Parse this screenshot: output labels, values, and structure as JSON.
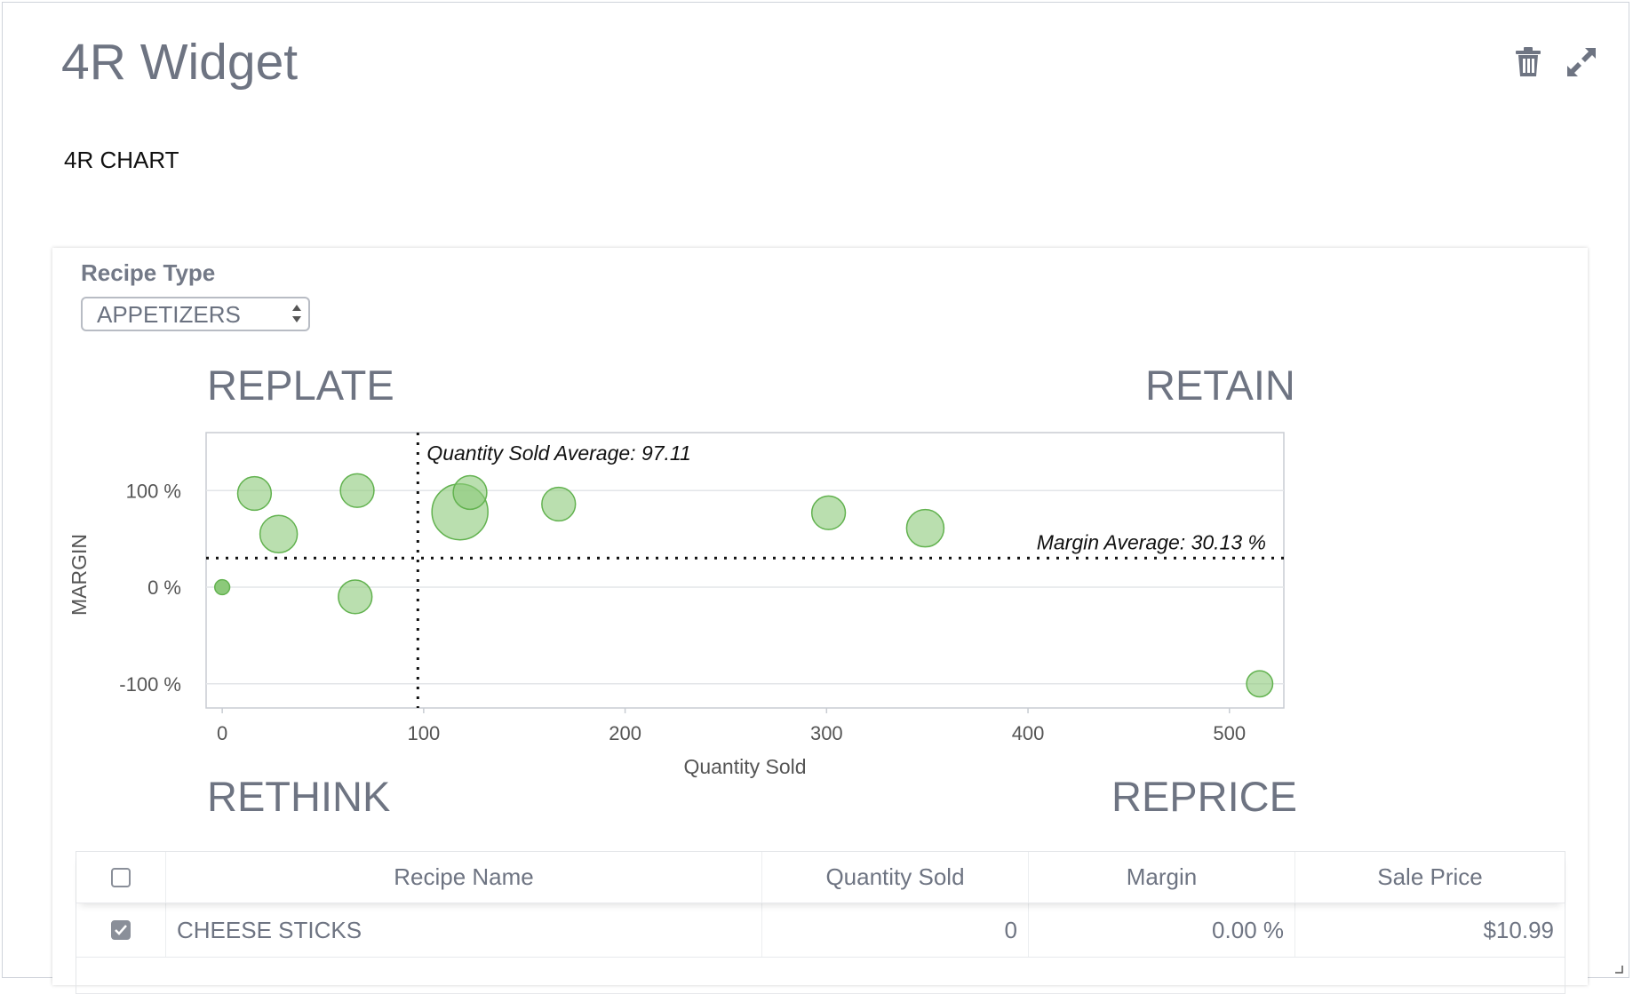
{
  "widget": {
    "title": "4R Widget",
    "section_label": "4R CHART",
    "icons": {
      "delete": "trash-icon",
      "expand": "expand-arrows-icon"
    }
  },
  "filter": {
    "label": "Recipe Type",
    "selected": "APPETIZERS"
  },
  "quadrants": {
    "top_left": "REPLATE",
    "top_right": "RETAIN",
    "bottom_left": "RETHINK",
    "bottom_right": "REPRICE"
  },
  "chart_data": {
    "type": "scatter",
    "xlabel": "Quantity Sold",
    "ylabel": "MARGIN",
    "x_ticks": [
      "0",
      "100",
      "200",
      "300",
      "400",
      "500"
    ],
    "y_ticks": [
      "100 %",
      "0 %",
      "-100 %"
    ],
    "xlim": [
      -8,
      527
    ],
    "ylim": [
      -125,
      160
    ],
    "grid": true,
    "bubble_color": "#8cc97a",
    "points": [
      {
        "x": 0,
        "y": 0,
        "r": 4
      },
      {
        "x": 16,
        "y": 97,
        "r": 9
      },
      {
        "x": 28,
        "y": 55,
        "r": 10
      },
      {
        "x": 67,
        "y": 100,
        "r": 9
      },
      {
        "x": 66,
        "y": -10,
        "r": 9
      },
      {
        "x": 118,
        "y": 78,
        "r": 15
      },
      {
        "x": 123,
        "y": 98,
        "r": 9
      },
      {
        "x": 167,
        "y": 86,
        "r": 9
      },
      {
        "x": 301,
        "y": 77,
        "r": 9
      },
      {
        "x": 349,
        "y": 61,
        "r": 10
      },
      {
        "x": 515,
        "y": -100,
        "r": 7
      }
    ],
    "avg_x": {
      "value": 97.11,
      "label": "Quantity Sold Average: 97.11"
    },
    "avg_y": {
      "value": 30.13,
      "label": "Margin Average: 30.13 %"
    }
  },
  "table": {
    "columns": [
      "Recipe Name",
      "Quantity Sold",
      "Margin",
      "Sale Price"
    ],
    "rows": [
      {
        "checked": true,
        "name": "CHEESE STICKS",
        "qty": "0",
        "margin": "0.00 %",
        "price": "$10.99"
      }
    ]
  }
}
